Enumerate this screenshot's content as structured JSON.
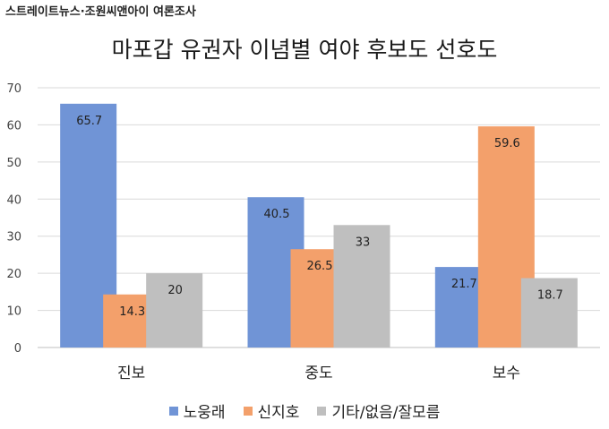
{
  "source": "스트레이트뉴스·조원씨앤아이 여론조사",
  "chart_data": {
    "type": "bar",
    "title": "마포갑 유권자 이념별 여야 후보도 선호도",
    "categories": [
      "진보",
      "중도",
      "보수"
    ],
    "series": [
      {
        "name": "노웅래",
        "values": [
          65.7,
          40.5,
          21.7
        ],
        "color": "#7094d6"
      },
      {
        "name": "신지호",
        "values": [
          14.3,
          26.5,
          59.6
        ],
        "color": "#f3a06b"
      },
      {
        "name": "기타/없음/잘모름",
        "values": [
          20,
          33,
          18.7
        ],
        "color": "#bfbfbf"
      }
    ],
    "ylim": [
      0,
      70
    ],
    "yticks": [
      "0",
      "10",
      "20",
      "30",
      "40",
      "50",
      "60",
      "70"
    ],
    "grid": true,
    "legend_position": "bottom"
  }
}
